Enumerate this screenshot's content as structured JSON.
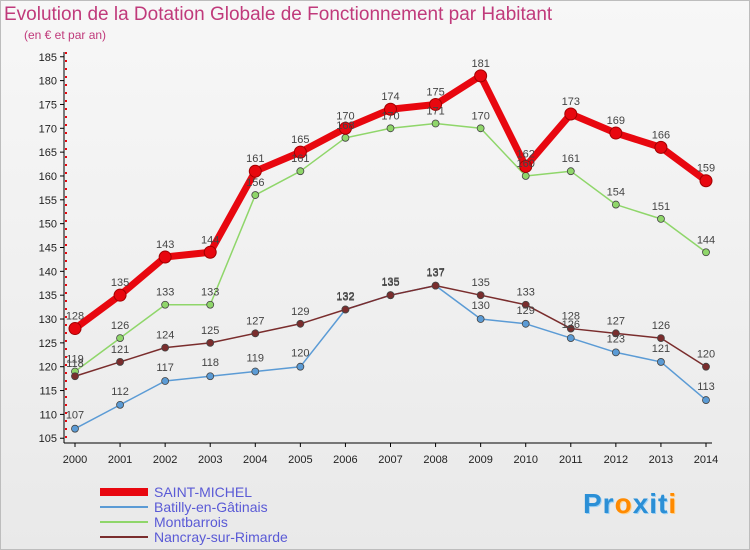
{
  "header": {
    "title": "Evolution de la Dotation Globale de Fonctionnement par Habitant",
    "subtitle": "(en € et par an)"
  },
  "logo_text": "Proxiti",
  "chart_data": {
    "type": "line",
    "x": [
      "2000",
      "2001",
      "2002",
      "2003",
      "2004",
      "2005",
      "2006",
      "2007",
      "2008",
      "2009",
      "2010",
      "2011",
      "2012",
      "2013",
      "2014"
    ],
    "yticks": [
      105,
      110,
      115,
      120,
      125,
      130,
      135,
      140,
      145,
      150,
      155,
      160,
      165,
      170,
      175,
      180,
      185
    ],
    "ylim": [
      104,
      186
    ],
    "grid": false,
    "legend_position": "bottom-left",
    "series": [
      {
        "name": "SAINT-MICHEL",
        "color": "#e8070f",
        "values": [
          128,
          135,
          143,
          144,
          161,
          165,
          170,
          174,
          175,
          181,
          162,
          173,
          169,
          166,
          159
        ]
      },
      {
        "name": "Batilly-en-Gâtinais",
        "color": "#5b9bd5",
        "values": [
          107,
          112,
          117,
          118,
          119,
          120,
          132,
          135,
          137,
          130,
          129,
          126,
          123,
          121,
          113
        ]
      },
      {
        "name": "Montbarrois",
        "color": "#8fd66a",
        "values": [
          119,
          126,
          133,
          133,
          156,
          161,
          168,
          170,
          171,
          170,
          160,
          161,
          154,
          151,
          144
        ]
      },
      {
        "name": "Nancray-sur-Rimarde",
        "color": "#7a2d2d",
        "values": [
          118,
          121,
          124,
          125,
          127,
          129,
          132,
          135,
          137,
          135,
          133,
          128,
          127,
          126,
          120
        ]
      }
    ]
  }
}
